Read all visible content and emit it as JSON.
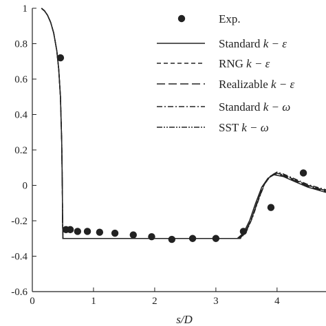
{
  "chart_data": {
    "type": "line",
    "xlabel": "s/D",
    "ylabel": "",
    "xlim": [
      0,
      4.8
    ],
    "ylim": [
      -0.6,
      1
    ],
    "xticks": [
      "0",
      "1",
      "2",
      "3",
      "4"
    ],
    "xtick_values": [
      0,
      1,
      2,
      3,
      4
    ],
    "yticks": [
      "-0.6",
      "-0.4",
      "-0.2",
      "0",
      "0.2",
      "0.4",
      "0.6",
      "0.8",
      "1"
    ],
    "ytick_values": [
      -0.6,
      -0.4,
      -0.2,
      0,
      0.2,
      0.4,
      0.6,
      0.8,
      1
    ],
    "grid": false,
    "legend_position": "top-right",
    "legend": [
      {
        "label": "Exp.",
        "prefix": "Exp.",
        "suffix": "",
        "style": "marker"
      },
      {
        "label": "Standard k − ε",
        "prefix": "Standard ",
        "suffix": "k − ε",
        "style": "solid"
      },
      {
        "label": "RNG k − ε",
        "prefix": "RNG ",
        "suffix": "k − ε",
        "style": "dashed"
      },
      {
        "label": "Realizable k − ε",
        "prefix": "Realizable ",
        "suffix": "k − ε",
        "style": "longdash"
      },
      {
        "label": "Standard k − ω",
        "prefix": "Standard ",
        "suffix": "k − ω",
        "style": "dashdot"
      },
      {
        "label": "SST k − ω",
        "prefix": "SST ",
        "suffix": "k − ω",
        "style": "dashdotdot"
      }
    ],
    "series": [
      {
        "name": "Exp.",
        "kind": "scatter",
        "x": [
          0.46,
          0.55,
          0.62,
          0.74,
          0.9,
          1.1,
          1.35,
          1.65,
          1.95,
          2.28,
          2.62,
          3.0,
          3.45,
          3.9,
          4.43
        ],
        "y": [
          0.72,
          -0.25,
          -0.25,
          -0.26,
          -0.26,
          -0.265,
          -0.27,
          -0.28,
          -0.29,
          -0.305,
          -0.3,
          -0.3,
          -0.26,
          -0.125,
          0.07
        ]
      },
      {
        "name": "Standard k − ε",
        "dash": "",
        "x": [
          0.15,
          0.2,
          0.25,
          0.3,
          0.35,
          0.4,
          0.43,
          0.46,
          0.48,
          0.49,
          0.495,
          0.5,
          3.35,
          3.45,
          3.55,
          3.65,
          3.75,
          3.85,
          3.95,
          4.1,
          4.3,
          4.5,
          4.7,
          4.8
        ],
        "y": [
          1.0,
          0.985,
          0.96,
          0.92,
          0.86,
          0.76,
          0.66,
          0.5,
          0.25,
          0.0,
          -0.2,
          -0.3,
          -0.3,
          -0.27,
          -0.2,
          -0.1,
          -0.01,
          0.04,
          0.06,
          0.05,
          0.02,
          -0.01,
          -0.03,
          -0.04
        ]
      },
      {
        "name": "RNG k − ε",
        "dash": "6,4",
        "x": [
          0.15,
          0.2,
          0.25,
          0.3,
          0.35,
          0.4,
          0.43,
          0.46,
          0.48,
          0.49,
          0.495,
          0.5,
          3.38,
          3.48,
          3.58,
          3.68,
          3.78,
          3.88,
          3.98,
          4.1,
          4.3,
          4.5,
          4.7,
          4.8
        ],
        "y": [
          1.0,
          0.985,
          0.96,
          0.92,
          0.86,
          0.76,
          0.66,
          0.5,
          0.25,
          0.0,
          -0.2,
          -0.3,
          -0.3,
          -0.27,
          -0.19,
          -0.09,
          0.0,
          0.05,
          0.07,
          0.06,
          0.03,
          0.0,
          -0.02,
          -0.03
        ]
      },
      {
        "name": "Realizable k − ε",
        "dash": "12,5",
        "x": [
          0.15,
          0.2,
          0.25,
          0.3,
          0.35,
          0.4,
          0.43,
          0.46,
          0.48,
          0.49,
          0.495,
          0.5,
          3.37,
          3.47,
          3.57,
          3.67,
          3.77,
          3.87,
          3.97,
          4.1,
          4.3,
          4.5,
          4.7,
          4.8
        ],
        "y": [
          1.0,
          0.985,
          0.96,
          0.92,
          0.86,
          0.76,
          0.66,
          0.5,
          0.25,
          0.0,
          -0.2,
          -0.3,
          -0.3,
          -0.27,
          -0.2,
          -0.1,
          -0.005,
          0.045,
          0.065,
          0.055,
          0.025,
          -0.005,
          -0.025,
          -0.035
        ]
      },
      {
        "name": "Standard k − ω",
        "dash": "8,3,2,3",
        "x": [
          0.15,
          0.2,
          0.25,
          0.3,
          0.35,
          0.4,
          0.43,
          0.46,
          0.48,
          0.49,
          0.495,
          0.5,
          3.4,
          3.5,
          3.6,
          3.7,
          3.8,
          3.9,
          4.0,
          4.1,
          4.3,
          4.5,
          4.7,
          4.8
        ],
        "y": [
          1.0,
          0.985,
          0.96,
          0.92,
          0.86,
          0.76,
          0.66,
          0.5,
          0.25,
          0.0,
          -0.2,
          -0.3,
          -0.3,
          -0.26,
          -0.18,
          -0.08,
          0.01,
          0.055,
          0.075,
          0.065,
          0.035,
          0.005,
          -0.015,
          -0.025
        ]
      },
      {
        "name": "SST k − ω",
        "dash": "8,2,2,2,2,2",
        "x": [
          0.15,
          0.2,
          0.25,
          0.3,
          0.35,
          0.4,
          0.43,
          0.46,
          0.48,
          0.49,
          0.495,
          0.5,
          3.39,
          3.49,
          3.59,
          3.69,
          3.79,
          3.89,
          3.99,
          4.1,
          4.3,
          4.5,
          4.7,
          4.8
        ],
        "y": [
          1.0,
          0.985,
          0.96,
          0.92,
          0.86,
          0.76,
          0.66,
          0.5,
          0.25,
          0.0,
          -0.2,
          -0.3,
          -0.3,
          -0.265,
          -0.185,
          -0.085,
          0.005,
          0.05,
          0.07,
          0.06,
          0.03,
          0.0,
          -0.02,
          -0.03
        ]
      }
    ]
  }
}
